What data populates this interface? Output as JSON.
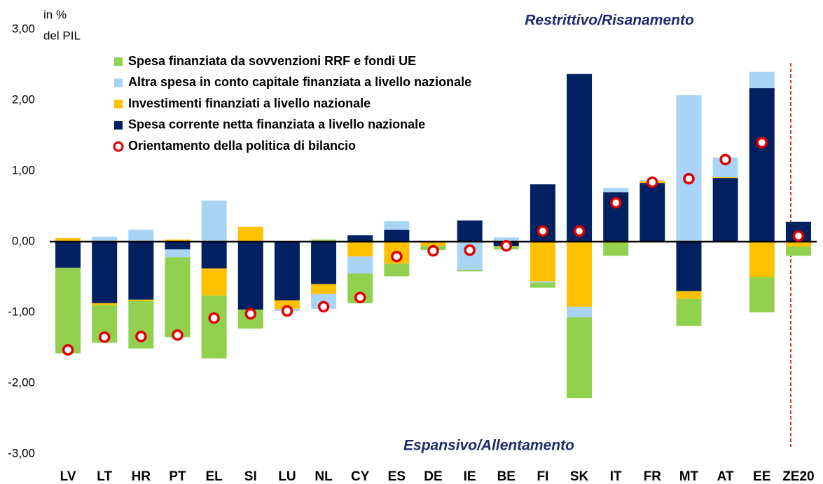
{
  "chart_data": {
    "type": "bar",
    "stacked": true,
    "ylabel": [
      "in %",
      "del PIL"
    ],
    "annotations": [
      "Restrittivo/Risanamento",
      "Espansivo/Allentamento"
    ],
    "categories": [
      "LV",
      "LT",
      "HR",
      "PT",
      "EL",
      "SI",
      "LU",
      "NL",
      "CY",
      "ES",
      "DE",
      "IE",
      "BE",
      "FI",
      "SK",
      "IT",
      "FR",
      "MT",
      "AT",
      "EE",
      "ZE20"
    ],
    "series": [
      {
        "name": "Spesa finanziata da sovvenzioni RRF e fondi UE",
        "color": "#92d050",
        "values": [
          -1.21,
          -0.53,
          -0.67,
          -1.13,
          -0.89,
          -0.27,
          0,
          0.03,
          -0.42,
          -0.18,
          -0.06,
          -0.02,
          -0.05,
          -0.07,
          -1.14,
          -0.2,
          0,
          -0.38,
          0,
          -0.5,
          -0.13
        ]
      },
      {
        "name": "Altra spesa in conto capitale finanziata a livello nazionale",
        "color": "#a9d4f5",
        "values": [
          0,
          0.07,
          0.17,
          -0.11,
          0.58,
          0,
          -0.03,
          -0.21,
          -0.24,
          0.12,
          0,
          -0.4,
          0.06,
          -0.02,
          -0.15,
          0.06,
          0.01,
          2.07,
          0.28,
          0.23,
          0
        ]
      },
      {
        "name": "Investimenti finanziati a livello nazionale",
        "color": "#ffc000",
        "values": [
          0.05,
          -0.03,
          -0.02,
          0.03,
          -0.38,
          0.21,
          -0.12,
          -0.14,
          -0.21,
          -0.31,
          -0.06,
          0,
          0,
          -0.56,
          -0.92,
          0,
          0.03,
          -0.11,
          0.01,
          -0.5,
          -0.07
        ]
      },
      {
        "name": "Spesa corrente netta finanziata a livello nazionale",
        "color": "#002060",
        "values": [
          -0.37,
          -0.87,
          -0.82,
          -0.11,
          -0.38,
          -0.96,
          -0.83,
          -0.6,
          0.09,
          0.17,
          0,
          0.3,
          -0.06,
          0.81,
          2.37,
          0.7,
          0.83,
          -0.7,
          0.9,
          2.17,
          0.28
        ]
      },
      {
        "name": "Orientamento della politica di bilancio",
        "color": "#e00000",
        "type": "scatter",
        "values": [
          -1.53,
          -1.35,
          -1.34,
          -1.32,
          -1.08,
          -1.02,
          -0.98,
          -0.92,
          -0.79,
          -0.21,
          -0.13,
          -0.12,
          -0.06,
          0.15,
          0.15,
          0.55,
          0.84,
          0.89,
          1.16,
          1.4,
          0.08
        ]
      }
    ],
    "ylim": [
      -3,
      3
    ],
    "yticks": [
      {
        "value": -3,
        "label": "-3,00"
      },
      {
        "value": -2,
        "label": "-2,00"
      },
      {
        "value": -1,
        "label": "-1,00"
      },
      {
        "value": 0,
        "label": "0,00"
      },
      {
        "value": 1,
        "label": "1,00"
      },
      {
        "value": 2,
        "label": "2,00"
      },
      {
        "value": 3,
        "label": "3,00"
      }
    ]
  }
}
